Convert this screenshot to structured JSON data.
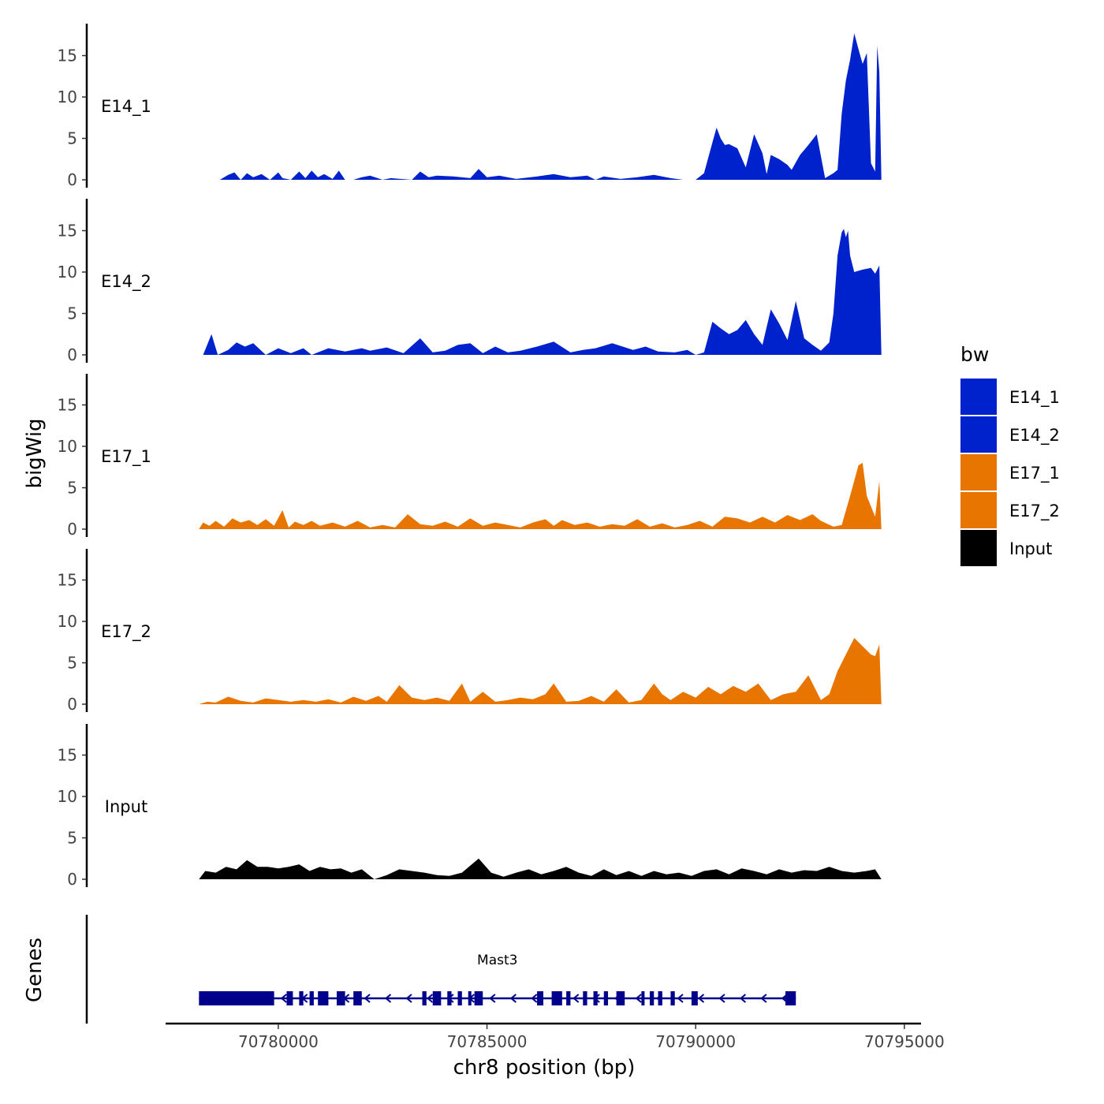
{
  "chart_data": {
    "type": "area",
    "x_axis_label": "chr8 position (bp)",
    "y_axis_label": "bigWig",
    "genes_axis_label": "Genes",
    "xlim": [
      70777300,
      70795400
    ],
    "x_ticks": [
      70780000,
      70785000,
      70790000,
      70795000
    ],
    "x_tick_labels": [
      "70780000",
      "70785000",
      "70790000",
      "70795000"
    ],
    "ylim": [
      0,
      19
    ],
    "y_ticks": [
      0,
      5,
      10,
      15
    ],
    "y_tick_labels": [
      "0",
      "5",
      "10",
      "15"
    ],
    "legend": {
      "title": "bw",
      "position": "right",
      "entries": [
        {
          "label": "E14_1",
          "color": "#0022cc"
        },
        {
          "label": "E14_2",
          "color": "#0022cc"
        },
        {
          "label": "E17_1",
          "color": "#e87500"
        },
        {
          "label": "E17_2",
          "color": "#e87500"
        },
        {
          "label": "Input",
          "color": "#000000"
        }
      ]
    },
    "series": [
      {
        "name": "E14_1",
        "color": "#0022cc",
        "x": [
          70778100,
          70778200,
          70778300,
          70778600,
          70778800,
          70778950,
          70779100,
          70779250,
          70779400,
          70779600,
          70779800,
          70780000,
          70780100,
          70780300,
          70780500,
          70780650,
          70780800,
          70780950,
          70781100,
          70781300,
          70781450,
          70781600,
          70781800,
          70782000,
          70782200,
          70782500,
          70782700,
          70783200,
          70783400,
          70783600,
          70783800,
          70784200,
          70784600,
          70784800,
          70785000,
          70785300,
          70785700,
          70786200,
          70786600,
          70787000,
          70787400,
          70787600,
          70787800,
          70788200,
          70788600,
          70789000,
          70789400,
          70789700,
          70790000,
          70790200,
          70790400,
          70790500,
          70790600,
          70790700,
          70790800,
          70791000,
          70791200,
          70791300,
          70791400,
          70791600,
          70791700,
          70791800,
          70792000,
          70792200,
          70792300,
          70792500,
          70792700,
          70792900,
          70793100,
          70793300,
          70793400,
          70793500,
          70793600,
          70793700,
          70793800,
          70793900,
          70794000,
          70794100,
          70794200,
          70794300,
          70794350,
          70794400,
          70794450
        ],
        "y": [
          0,
          0,
          0,
          0,
          0.6,
          0.9,
          0,
          0.8,
          0.3,
          0.7,
          0,
          0.9,
          0.2,
          0,
          1,
          0.2,
          1.1,
          0.3,
          0.7,
          0.1,
          1.1,
          0,
          0,
          0.3,
          0.5,
          0,
          0.2,
          0,
          1,
          0.3,
          0.5,
          0.4,
          0.2,
          1.3,
          0.3,
          0.5,
          0.1,
          0.4,
          0.7,
          0.3,
          0.5,
          0,
          0.4,
          0.1,
          0.3,
          0.6,
          0.2,
          0,
          0,
          0.8,
          4.5,
          6.3,
          5,
          4.2,
          4.3,
          3.8,
          1.5,
          3.5,
          5.5,
          3.2,
          0.7,
          3,
          2.5,
          1.8,
          1.2,
          3,
          4.2,
          5.5,
          0.2,
          0.8,
          1.2,
          8,
          12,
          14.5,
          17.7,
          15.8,
          14,
          15.3,
          2,
          1,
          16.2,
          13,
          0
        ]
      },
      {
        "name": "E14_2",
        "color": "#0022cc",
        "x": [
          70778200,
          70778400,
          70778550,
          70778800,
          70779000,
          70779200,
          70779400,
          70779700,
          70780000,
          70780300,
          70780600,
          70780800,
          70781200,
          70781600,
          70782000,
          70782200,
          70782600,
          70783000,
          70783400,
          70783700,
          70784000,
          70784300,
          70784600,
          70784900,
          70785200,
          70785500,
          70785800,
          70786200,
          70786600,
          70787000,
          70787300,
          70787600,
          70788000,
          70788500,
          70788800,
          70789100,
          70789500,
          70789800,
          70790000,
          70790200,
          70790400,
          70790600,
          70790800,
          70791000,
          70791200,
          70791400,
          70791600,
          70791800,
          70792000,
          70792200,
          70792400,
          70792600,
          70792800,
          70793000,
          70793200,
          70793300,
          70793400,
          70793500,
          70793550,
          70793600,
          70793650,
          70793700,
          70793800,
          70794000,
          70794200,
          70794300,
          70794400,
          70794450
        ],
        "y": [
          0,
          2.5,
          0,
          0.6,
          1.5,
          1,
          1.4,
          0,
          0.8,
          0.2,
          0.8,
          0,
          0.8,
          0.4,
          0.8,
          0.5,
          0.9,
          0.2,
          2,
          0.3,
          0.5,
          1.2,
          1.4,
          0.2,
          1,
          0.3,
          0.5,
          1,
          1.6,
          0.3,
          0.6,
          0.8,
          1.4,
          0.6,
          1,
          0.4,
          0.3,
          0.6,
          0,
          0.3,
          4,
          3.2,
          2.5,
          3,
          4.2,
          2.5,
          1.2,
          5.5,
          3.8,
          1.8,
          6.5,
          2,
          1.2,
          0.5,
          1.5,
          5,
          12,
          14.8,
          15.2,
          14.2,
          15,
          12,
          10,
          10.3,
          10.5,
          9.8,
          10.8,
          0
        ]
      },
      {
        "name": "E17_1",
        "color": "#e87500",
        "x": [
          70778100,
          70778200,
          70778350,
          70778500,
          70778700,
          70778900,
          70779100,
          70779300,
          70779500,
          70779700,
          70779900,
          70780100,
          70780250,
          70780400,
          70780600,
          70780800,
          70781000,
          70781300,
          70781600,
          70781900,
          70782200,
          70782500,
          70782800,
          70783100,
          70783400,
          70783700,
          70784000,
          70784300,
          70784600,
          70784900,
          70785200,
          70785500,
          70785800,
          70786100,
          70786400,
          70786600,
          70786800,
          70787100,
          70787400,
          70787700,
          70788000,
          70788300,
          70788600,
          70788900,
          70789200,
          70789500,
          70789800,
          70790100,
          70790400,
          70790700,
          70791000,
          70791300,
          70791600,
          70791900,
          70792200,
          70792500,
          70792800,
          70793000,
          70793300,
          70793500,
          70793700,
          70793900,
          70794000,
          70794100,
          70794300,
          70794400,
          70794450
        ],
        "y": [
          0,
          0.8,
          0.4,
          1,
          0.3,
          1.3,
          0.8,
          1.1,
          0.5,
          1.2,
          0.4,
          2.3,
          0.2,
          0.9,
          0.5,
          1,
          0.4,
          0.8,
          0.3,
          1,
          0.2,
          0.5,
          0.2,
          1.8,
          0.6,
          0.4,
          0.9,
          0.3,
          1.3,
          0.4,
          0.8,
          0.5,
          0.2,
          0.8,
          1.2,
          0.4,
          1.1,
          0.5,
          0.8,
          0.3,
          0.6,
          0.4,
          1.2,
          0.3,
          0.7,
          0.2,
          0.5,
          1,
          0.3,
          1.5,
          1.3,
          0.8,
          1.5,
          0.8,
          1.7,
          1.1,
          1.8,
          1,
          0.3,
          0.5,
          4,
          7.7,
          8,
          4,
          1.5,
          5.8,
          0
        ]
      },
      {
        "name": "E17_2",
        "color": "#e87500",
        "x": [
          70778100,
          70778300,
          70778500,
          70778800,
          70779100,
          70779400,
          70779700,
          70780000,
          70780300,
          70780600,
          70780900,
          70781200,
          70781500,
          70781800,
          70782100,
          70782400,
          70782600,
          70782900,
          70783200,
          70783500,
          70783800,
          70784100,
          70784400,
          70784600,
          70784900,
          70785200,
          70785500,
          70785800,
          70786100,
          70786400,
          70786600,
          70786900,
          70787200,
          70787500,
          70787800,
          70788100,
          70788400,
          70788700,
          70789000,
          70789200,
          70789400,
          70789700,
          70790000,
          70790300,
          70790600,
          70790900,
          70791200,
          70791500,
          70791800,
          70792100,
          70792400,
          70792700,
          70793000,
          70793200,
          70793400,
          70793600,
          70793800,
          70794000,
          70794200,
          70794300,
          70794400,
          70794450
        ],
        "y": [
          0,
          0.3,
          0.2,
          0.9,
          0.4,
          0.2,
          0.7,
          0.5,
          0.3,
          0.5,
          0.3,
          0.6,
          0.2,
          0.9,
          0.4,
          1,
          0.3,
          2.3,
          0.8,
          0.5,
          0.8,
          0.4,
          2.5,
          0.3,
          1.5,
          0.3,
          0.5,
          0.8,
          0.6,
          1.2,
          2.5,
          0.3,
          0.4,
          1,
          0.3,
          1.8,
          0.2,
          0.5,
          2.5,
          1.2,
          0.5,
          1.5,
          0.8,
          2.1,
          1.2,
          2.2,
          1.5,
          2.5,
          0.5,
          1.2,
          1.5,
          3.5,
          0.5,
          1.2,
          4,
          6,
          8,
          7,
          6,
          5.8,
          7.2,
          0
        ]
      },
      {
        "name": "Input",
        "color": "#000000",
        "x": [
          70778100,
          70778250,
          70778500,
          70778750,
          70779000,
          70779250,
          70779500,
          70779750,
          70780000,
          70780250,
          70780500,
          70780750,
          70781000,
          70781250,
          70781500,
          70781750,
          70782000,
          70782300,
          70782600,
          70782900,
          70783200,
          70783500,
          70783800,
          70784100,
          70784400,
          70784800,
          70785100,
          70785400,
          70785700,
          70786000,
          70786300,
          70786600,
          70786900,
          70787200,
          70787500,
          70787800,
          70788100,
          70788400,
          70788700,
          70789000,
          70789300,
          70789600,
          70789900,
          70790200,
          70790500,
          70790800,
          70791100,
          70791400,
          70791700,
          70792000,
          70792300,
          70792600,
          70792900,
          70793200,
          70793500,
          70793800,
          70794100,
          70794300,
          70794450
        ],
        "y": [
          0,
          1,
          0.8,
          1.5,
          1.2,
          2.3,
          1.5,
          1.5,
          1.3,
          1.5,
          1.8,
          1,
          1.5,
          1.2,
          1.3,
          0.8,
          1.2,
          0,
          0.5,
          1.2,
          1,
          0.8,
          0.5,
          0.4,
          0.8,
          2.5,
          0.8,
          0.3,
          0.8,
          1.2,
          0.6,
          1,
          1.5,
          0.8,
          0.4,
          1.2,
          0.5,
          1,
          0.4,
          1,
          0.6,
          0.8,
          0.4,
          1,
          1.2,
          0.6,
          1.3,
          1,
          0.6,
          1.2,
          0.8,
          1.1,
          1,
          1.5,
          1,
          0.8,
          1,
          1.2,
          0
        ]
      }
    ],
    "gene_track": {
      "gene_name": "Mast3",
      "color": "#00008b",
      "strand": "-",
      "start": 70778100,
      "end": 70792400,
      "exons": [
        [
          70778100,
          70779900
        ],
        [
          70780200,
          70780350
        ],
        [
          70780500,
          70780600
        ],
        [
          70780750,
          70780850
        ],
        [
          70780950,
          70781200
        ],
        [
          70781400,
          70781600
        ],
        [
          70781800,
          70782000
        ],
        [
          70783450,
          70783550
        ],
        [
          70783700,
          70783900
        ],
        [
          70784050,
          70784150
        ],
        [
          70784300,
          70784400
        ],
        [
          70784550,
          70784600
        ],
        [
          70784700,
          70784900
        ],
        [
          70786200,
          70786350
        ],
        [
          70786550,
          70786800
        ],
        [
          70786900,
          70787000
        ],
        [
          70787300,
          70787400
        ],
        [
          70787550,
          70787650
        ],
        [
          70787800,
          70787900
        ],
        [
          70788100,
          70788300
        ],
        [
          70788700,
          70788750
        ],
        [
          70788900,
          70789000
        ],
        [
          70789100,
          70789200
        ],
        [
          70789400,
          70789500
        ],
        [
          70789900,
          70790050
        ],
        [
          70792150,
          70792400
        ]
      ]
    }
  }
}
